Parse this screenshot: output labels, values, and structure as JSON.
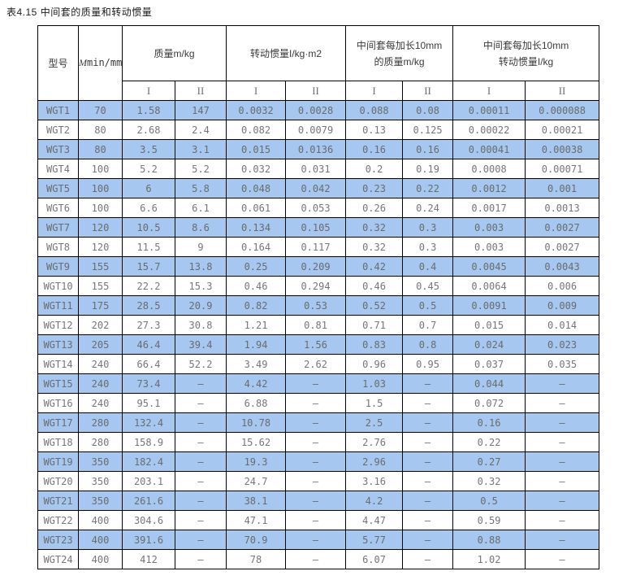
{
  "colors": {
    "row_highlight": "#a6c8f0",
    "border": "#000000",
    "value_text": "#767676",
    "header_text": "#3a3a3a"
  },
  "chart_data": {
    "type": "table",
    "title": "表4.15 中间套的质量和转动惯量",
    "header": {
      "model": "型号",
      "mmin_symbol": "M",
      "mmin_rest": "min/mm",
      "groups": [
        {
          "lines": [
            "质量m/kg"
          ]
        },
        {
          "lines": [
            "转动惯量I/kg·m2"
          ]
        },
        {
          "lines": [
            "中间套每加长10mm",
            "的质量m/kg"
          ]
        },
        {
          "lines": [
            "中间套每加长10mm",
            "转动惯量I/kg"
          ]
        }
      ],
      "sub_columns": [
        "I",
        "II"
      ]
    },
    "rows": [
      [
        "WGT1",
        "70",
        "1.58",
        "147",
        "0.0032",
        "0.0028",
        "0.088",
        "0.08",
        "0.00011",
        "0.000088"
      ],
      [
        "WGT2",
        "80",
        "2.68",
        "2.4",
        "0.082",
        "0.0079",
        "0.13",
        "0.125",
        "0.00022",
        "0.00021"
      ],
      [
        "WGT3",
        "80",
        "3.5",
        "3.1",
        "0.015",
        "0.0136",
        "0.16",
        "0.16",
        "0.00041",
        "0.00038"
      ],
      [
        "WGT4",
        "100",
        "5.2",
        "5.2",
        "0.032",
        "0.031",
        "0.2",
        "0.19",
        "0.0008",
        "0.00071"
      ],
      [
        "WGT5",
        "100",
        "6",
        "5.8",
        "0.048",
        "0.042",
        "0.23",
        "0.22",
        "0.0012",
        "0.001"
      ],
      [
        "WGT6",
        "100",
        "6.6",
        "6.1",
        "0.061",
        "0.053",
        "0.26",
        "0.24",
        "0.0017",
        "0.0013"
      ],
      [
        "WGT7",
        "120",
        "10.5",
        "8.6",
        "0.134",
        "0.105",
        "0.32",
        "0.3",
        "0.003",
        "0.0027"
      ],
      [
        "WGT8",
        "120",
        "11.5",
        "9",
        "0.164",
        "0.117",
        "0.32",
        "0.3",
        "0.003",
        "0.0027"
      ],
      [
        "WGT9",
        "155",
        "15.7",
        "13.8",
        "0.25",
        "0.209",
        "0.42",
        "0.4",
        "0.0045",
        "0.0043"
      ],
      [
        "WGT10",
        "155",
        "22.2",
        "15.3",
        "0.46",
        "0.294",
        "0.46",
        "0.45",
        "0.0064",
        "0.006"
      ],
      [
        "WGT11",
        "175",
        "28.5",
        "20.9",
        "0.82",
        "0.53",
        "0.52",
        "0.5",
        "0.0091",
        "0.009"
      ],
      [
        "WGT12",
        "202",
        "27.3",
        "30.8",
        "1.21",
        "0.81",
        "0.71",
        "0.7",
        "0.015",
        "0.014"
      ],
      [
        "WGT13",
        "205",
        "46.4",
        "39.4",
        "1.94",
        "1.56",
        "0.83",
        "0.8",
        "0.024",
        "0.023"
      ],
      [
        "WGT14",
        "240",
        "66.4",
        "52.2",
        "3.49",
        "2.62",
        "0.96",
        "0.95",
        "0.037",
        "0.035"
      ],
      [
        "WGT15",
        "240",
        "73.4",
        "–",
        "4.42",
        "–",
        "1.03",
        "–",
        "0.044",
        "–"
      ],
      [
        "WGT16",
        "240",
        "95.1",
        "–",
        "6.88",
        "–",
        "1.5",
        "–",
        "0.072",
        "–"
      ],
      [
        "WGT17",
        "280",
        "132.4",
        "–",
        "10.78",
        "–",
        "2.5",
        "–",
        "0.16",
        "–"
      ],
      [
        "WGT18",
        "280",
        "158.9",
        "–",
        "15.62",
        "–",
        "2.76",
        "–",
        "0.22",
        "–"
      ],
      [
        "WGT19",
        "350",
        "182.4",
        "–",
        "19.3",
        "–",
        "2.96",
        "–",
        "0.27",
        "–"
      ],
      [
        "WGT20",
        "350",
        "203.1",
        "–",
        "24.7",
        "–",
        "3.16",
        "–",
        "0.32",
        "–"
      ],
      [
        "WGT21",
        "350",
        "261.6",
        "–",
        "38.1",
        "–",
        "4.2",
        "–",
        "0.5",
        "–"
      ],
      [
        "WGT22",
        "400",
        "304.6",
        "–",
        "47.1",
        "–",
        "4.47",
        "–",
        "0.59",
        "–"
      ],
      [
        "WGT23",
        "400",
        "391.6",
        "–",
        "70.9",
        "–",
        "5.77",
        "–",
        "0.88",
        "–"
      ],
      [
        "WGT24",
        "400",
        "412",
        "–",
        "78",
        "–",
        "6.07",
        "–",
        "1.02",
        "–"
      ]
    ]
  }
}
